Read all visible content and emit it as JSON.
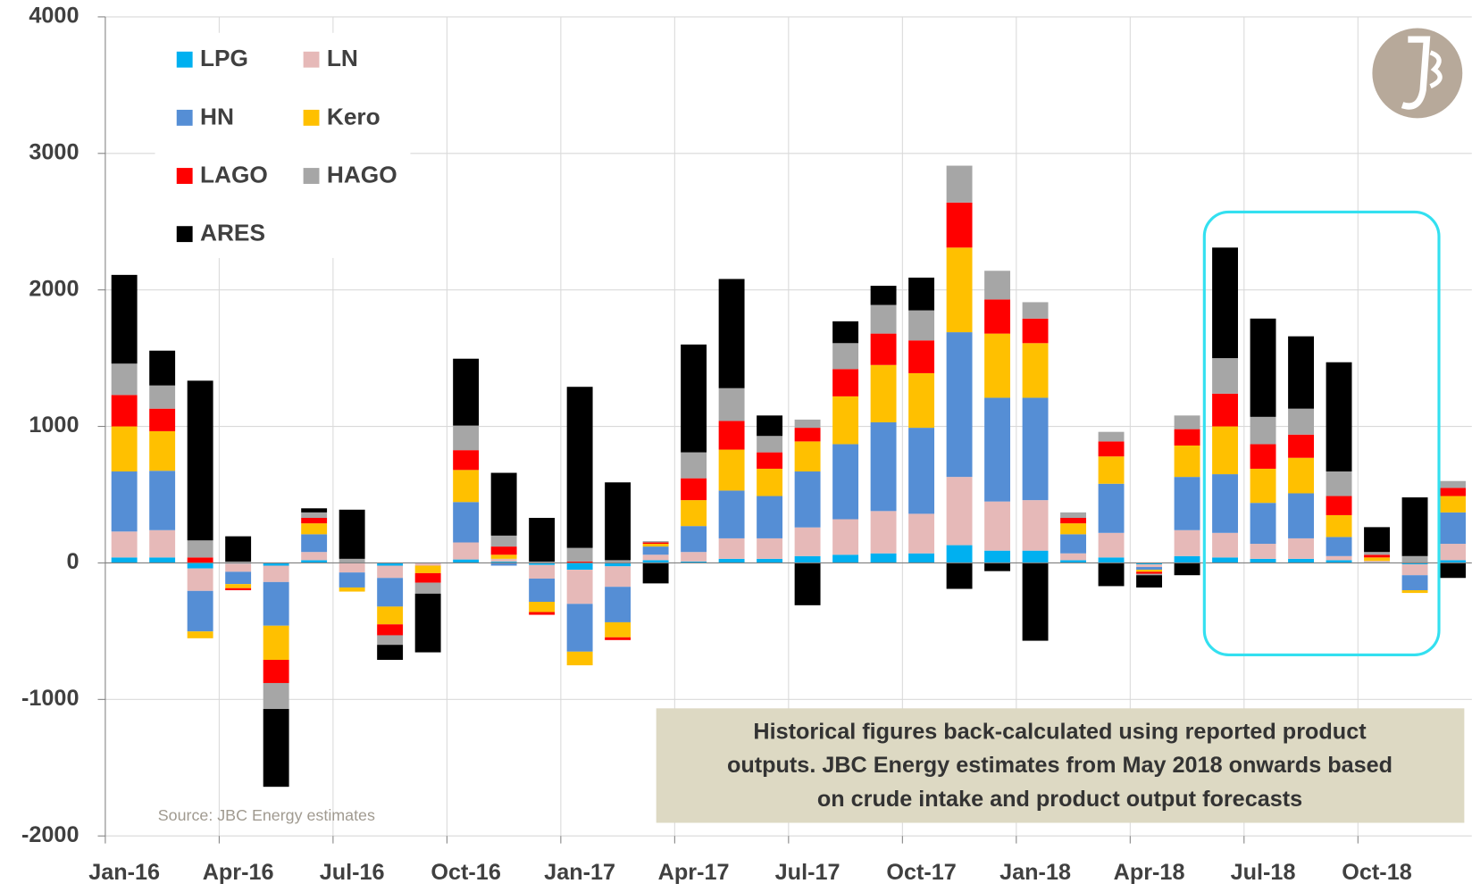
{
  "chart_data": {
    "type": "stacked_bar",
    "categories": [
      "Jan-16",
      null,
      null,
      "Apr-16",
      null,
      null,
      "Jul-16",
      null,
      null,
      "Oct-16",
      null,
      null,
      "Jan-17",
      null,
      null,
      "Apr-17",
      null,
      null,
      "Jul-17",
      null,
      null,
      "Oct-17",
      null,
      null,
      "Jan-18",
      null,
      null,
      "Apr-18",
      null,
      null,
      "Jul-18",
      null,
      null,
      "Oct-18",
      null,
      null
    ],
    "series": [
      {
        "name": "LPG",
        "color": "#00b0f0",
        "values": [
          40,
          40,
          -40,
          -5,
          -20,
          20,
          0,
          -20,
          0,
          25,
          10,
          -15,
          -50,
          -25,
          20,
          10,
          30,
          30,
          50,
          60,
          70,
          70,
          130,
          90,
          90,
          20,
          40,
          -10,
          50,
          40,
          30,
          30,
          20,
          5,
          -10,
          20
        ]
      },
      {
        "name": "LN",
        "color": "#e6b9b8",
        "values": [
          190,
          200,
          -165,
          -60,
          -120,
          60,
          -70,
          -90,
          -20,
          125,
          20,
          -100,
          -250,
          -150,
          40,
          70,
          150,
          150,
          210,
          260,
          310,
          290,
          500,
          360,
          370,
          50,
          180,
          -20,
          190,
          180,
          110,
          150,
          30,
          10,
          -80,
          120
        ]
      },
      {
        "name": "HN",
        "color": "#558ed5",
        "values": [
          440,
          435,
          -297,
          -90,
          -320,
          130,
          -110,
          -210,
          0,
          296,
          -20,
          -170,
          -350,
          -260,
          60,
          190,
          350,
          310,
          410,
          550,
          650,
          630,
          1060,
          760,
          750,
          140,
          360,
          -20,
          390,
          430,
          300,
          330,
          140,
          0,
          -110,
          230
        ]
      },
      {
        "name": "Kero",
        "color": "#ffc000",
        "values": [
          330,
          290,
          -50,
          -30,
          -250,
          80,
          -30,
          -130,
          -55,
          235,
          30,
          -75,
          -100,
          -110,
          20,
          190,
          300,
          200,
          220,
          350,
          420,
          400,
          620,
          470,
          400,
          80,
          200,
          -15,
          230,
          350,
          250,
          260,
          160,
          25,
          -20,
          120
        ]
      },
      {
        "name": "LAGO",
        "color": "#ff0000",
        "values": [
          230,
          165,
          40,
          -15,
          -170,
          40,
          0,
          -80,
          -70,
          145,
          60,
          -20,
          10,
          -20,
          10,
          160,
          210,
          120,
          100,
          200,
          230,
          240,
          330,
          250,
          180,
          40,
          110,
          -15,
          120,
          240,
          180,
          170,
          140,
          20,
          0,
          60
        ]
      },
      {
        "name": "HAGO",
        "color": "#a6a6a6",
        "values": [
          230,
          170,
          125,
          10,
          -190,
          40,
          30,
          -70,
          -80,
          180,
          80,
          10,
          100,
          20,
          10,
          190,
          240,
          120,
          60,
          190,
          210,
          220,
          270,
          210,
          120,
          40,
          70,
          -10,
          100,
          260,
          200,
          190,
          180,
          20,
          50,
          50
        ]
      },
      {
        "name": "ARES",
        "color": "#000000",
        "values": [
          650,
          255,
          1170,
          185,
          -570,
          30,
          360,
          -110,
          -430,
          490,
          460,
          320,
          1180,
          570,
          -150,
          790,
          800,
          150,
          -310,
          160,
          140,
          240,
          -190,
          -60,
          -570,
          0,
          -170,
          -90,
          -90,
          810,
          720,
          530,
          800,
          182,
          430,
          -110
        ]
      }
    ],
    "ylim": [
      -2000,
      4000
    ],
    "yticks": [
      -2000,
      -1000,
      0,
      1000,
      2000,
      3000,
      4000
    ],
    "grid": true,
    "legend": "top-left",
    "source": "Source: JBC Energy estimates",
    "annotation": [
      "Historical figures back-calculated using reported product",
      "outputs. JBC Energy estimates from May 2018 onwards based",
      "on crude intake and product output forecasts"
    ]
  }
}
